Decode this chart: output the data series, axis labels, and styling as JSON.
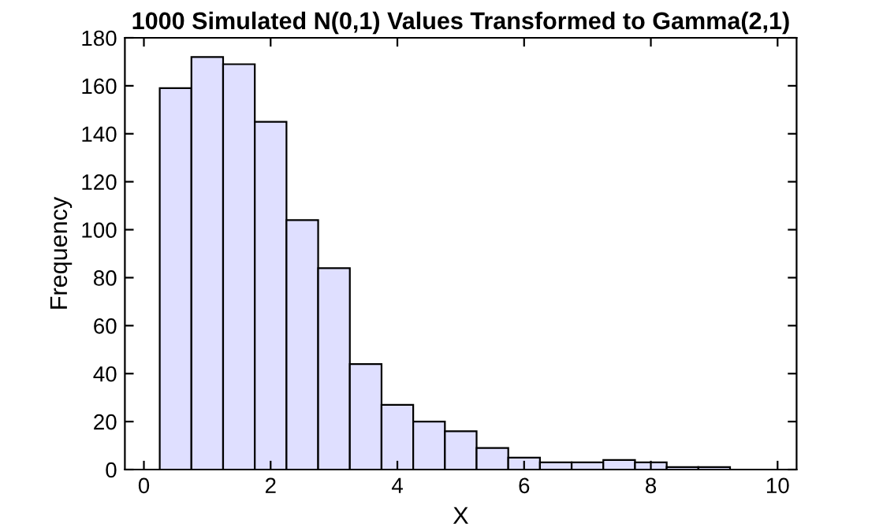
{
  "chart_data": {
    "type": "histogram",
    "title": "1000 Simulated N(0,1) Values Transformed to Gamma(2,1)",
    "xlabel": "X",
    "ylabel": "Frequency",
    "bins": [
      0.25,
      0.75,
      1.25,
      1.75,
      2.25,
      2.75,
      3.25,
      3.75,
      4.25,
      4.75,
      5.25,
      5.75,
      6.25,
      6.75,
      7.25,
      7.75,
      8.25,
      8.75,
      9.25
    ],
    "values": [
      159,
      172,
      169,
      145,
      104,
      84,
      44,
      27,
      20,
      16,
      9,
      5,
      3,
      3,
      4,
      3,
      1,
      1
    ],
    "color": "#dfdfff",
    "xlim": [
      -0.3,
      10.3
    ],
    "xticks": [
      0,
      2,
      4,
      6,
      8,
      10
    ],
    "ylim": [
      0,
      180
    ],
    "yticks": [
      0,
      20,
      40,
      60,
      80,
      100,
      120,
      140,
      160,
      180
    ],
    "grid": false,
    "legend": false
  }
}
